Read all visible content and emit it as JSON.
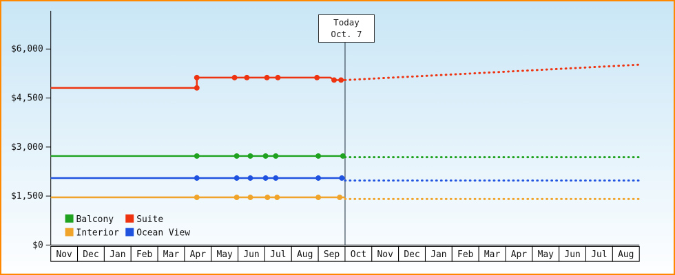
{
  "frame": {
    "border_color": "#ff8800"
  },
  "chart_data": {
    "type": "line",
    "annotation": {
      "line1": "Today",
      "line2": "Oct. 7"
    },
    "y_axis": {
      "ticks": [
        {
          "value": 0,
          "label": "$0"
        },
        {
          "value": 1500,
          "label": "$1,500"
        },
        {
          "value": 3000,
          "label": "$3,000"
        },
        {
          "value": 4500,
          "label": "$4,500"
        },
        {
          "value": 6000,
          "label": "$6,000"
        }
      ],
      "ylim": [
        0,
        7000
      ]
    },
    "x_axis": {
      "months": [
        "Nov",
        "Dec",
        "Jan",
        "Feb",
        "Mar",
        "Apr",
        "May",
        "Jun",
        "Jul",
        "Aug",
        "Sep",
        "Oct",
        "Nov",
        "Dec",
        "Jan",
        "Feb",
        "Mar",
        "Apr",
        "May",
        "Jun",
        "Jul",
        "Aug"
      ],
      "today_index": 11
    },
    "series": [
      {
        "name": "Suite",
        "color": "#ee3311",
        "solid": [
          [
            0,
            4810
          ],
          [
            5.46,
            4810
          ],
          [
            5.46,
            5125
          ],
          [
            10.45,
            5125
          ],
          [
            10.59,
            5050
          ],
          [
            11,
            5050
          ]
        ],
        "markers": [
          [
            5.46,
            4810
          ],
          [
            5.46,
            5125
          ],
          [
            6.87,
            5125
          ],
          [
            7.33,
            5125
          ],
          [
            8.08,
            5125
          ],
          [
            8.49,
            5125
          ],
          [
            9.95,
            5125
          ],
          [
            10.59,
            5050
          ],
          [
            10.85,
            5050
          ]
        ],
        "forecast": [
          [
            11,
            5050
          ],
          [
            22,
            5520
          ]
        ]
      },
      {
        "name": "Balcony",
        "color": "#1fa21f",
        "solid": [
          [
            0,
            2725
          ],
          [
            11,
            2725
          ]
        ],
        "markers": [
          [
            5.46,
            2725
          ],
          [
            6.95,
            2725
          ],
          [
            7.46,
            2725
          ],
          [
            8.03,
            2725
          ],
          [
            8.41,
            2725
          ],
          [
            10.0,
            2725
          ],
          [
            10.92,
            2725
          ]
        ],
        "forecast": [
          [
            11,
            2690
          ],
          [
            22,
            2690
          ]
        ]
      },
      {
        "name": "Ocean View",
        "color": "#2052e0",
        "solid": [
          [
            0,
            2050
          ],
          [
            11,
            2050
          ]
        ],
        "markers": [
          [
            5.46,
            2050
          ],
          [
            6.95,
            2050
          ],
          [
            7.46,
            2050
          ],
          [
            8.03,
            2050
          ],
          [
            8.41,
            2050
          ],
          [
            10.0,
            2050
          ],
          [
            10.88,
            2050
          ]
        ],
        "forecast": [
          [
            11,
            1975
          ],
          [
            22,
            1975
          ]
        ]
      },
      {
        "name": "Interior",
        "color": "#f0a42a",
        "solid": [
          [
            0,
            1460
          ],
          [
            11,
            1460
          ]
        ],
        "markers": [
          [
            5.46,
            1460
          ],
          [
            6.95,
            1460
          ],
          [
            7.46,
            1460
          ],
          [
            8.1,
            1460
          ],
          [
            8.46,
            1460
          ],
          [
            10.0,
            1460
          ],
          [
            10.8,
            1460
          ]
        ],
        "forecast": [
          [
            11,
            1410
          ],
          [
            22,
            1410
          ]
        ]
      }
    ],
    "legend": {
      "items": [
        {
          "label": "Balcony",
          "color": "#1fa21f"
        },
        {
          "label": "Suite",
          "color": "#ee3311"
        },
        {
          "label": "Interior",
          "color": "#f0a42a"
        },
        {
          "label": "Ocean View",
          "color": "#2052e0"
        }
      ]
    }
  }
}
